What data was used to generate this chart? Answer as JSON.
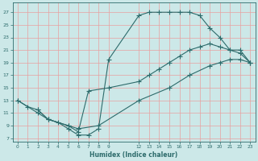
{
  "xlabel": "Humidex (Indice chaleur)",
  "bg_color": "#cce8e8",
  "grid_color": "#e8a0a0",
  "line_color": "#2d6b6b",
  "xlim": [
    -0.5,
    23.5
  ],
  "ylim": [
    6.5,
    28.5
  ],
  "xticks": [
    0,
    1,
    2,
    3,
    4,
    5,
    6,
    7,
    8,
    9,
    12,
    13,
    14,
    15,
    16,
    17,
    18,
    19,
    20,
    21,
    22,
    23
  ],
  "yticks": [
    7,
    9,
    11,
    13,
    15,
    17,
    19,
    21,
    23,
    25,
    27
  ],
  "line1_x": [
    0,
    1,
    2,
    3,
    4,
    5,
    6,
    7,
    8,
    9,
    12,
    13,
    14,
    15,
    16,
    17,
    18,
    19,
    20,
    21,
    22,
    23
  ],
  "line1_y": [
    13,
    12,
    11.5,
    10,
    9.5,
    8.5,
    7.5,
    7.5,
    8.5,
    19.5,
    26.5,
    27,
    27,
    27,
    27,
    27,
    26.5,
    24.5,
    23,
    21,
    21,
    19
  ],
  "line2_x": [
    0,
    2,
    3,
    5,
    6,
    7,
    9,
    12,
    13,
    14,
    15,
    16,
    17,
    18,
    19,
    20,
    21,
    22,
    23
  ],
  "line2_y": [
    13,
    11,
    10,
    9,
    8,
    14.5,
    15,
    16,
    17,
    18,
    19,
    20,
    21,
    21.5,
    22,
    21.5,
    21,
    20.5,
    19
  ],
  "line3_x": [
    2,
    3,
    5,
    6,
    8,
    12,
    15,
    17,
    19,
    20,
    21,
    22,
    23
  ],
  "line3_y": [
    11.5,
    10,
    9,
    8.5,
    9,
    13,
    15,
    17,
    18.5,
    19,
    19.5,
    19.5,
    19
  ]
}
